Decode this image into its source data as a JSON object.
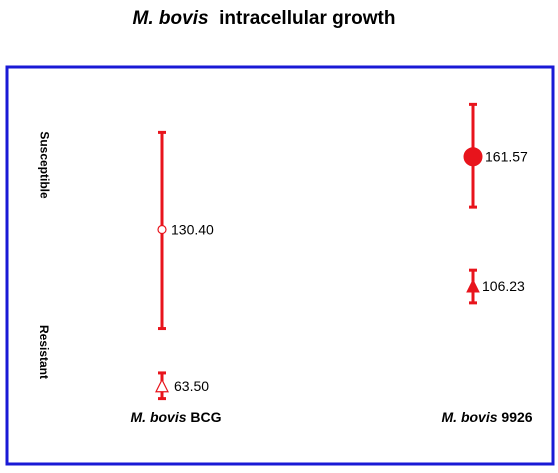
{
  "title": {
    "italic": "M. bovis",
    "rest": "intracellular growth"
  },
  "chart_data": {
    "type": "scatter",
    "title": "M. bovis intracellular growth",
    "categories": [
      {
        "italic": "M. bovis",
        "rest": "BCG"
      },
      {
        "italic": "M. bovis",
        "rest": "9926"
      }
    ],
    "y_labels": [
      "Susceptible",
      "Resistant"
    ],
    "series": [
      {
        "category": 0,
        "points": [
          {
            "group": "susceptible",
            "value": 130.4,
            "label": "130.40",
            "lower": 88,
            "upper": 172,
            "marker": "open-circle"
          },
          {
            "group": "resistant",
            "value": 63.5,
            "label": "63.50",
            "lower": 58,
            "upper": 69,
            "marker": "open-triangle"
          }
        ]
      },
      {
        "category": 1,
        "points": [
          {
            "group": "susceptible",
            "value": 161.57,
            "label": "161.57",
            "lower": 140,
            "upper": 184,
            "marker": "filled-circle"
          },
          {
            "group": "resistant",
            "value": 106.23,
            "label": "106.23",
            "lower": 99,
            "upper": 113,
            "marker": "filled-triangle"
          }
        ]
      }
    ],
    "ylim": [
      30,
      200
    ],
    "colors": {
      "marker": "#e8141c",
      "frame": "#1a1ad6",
      "text": "#000000"
    }
  }
}
